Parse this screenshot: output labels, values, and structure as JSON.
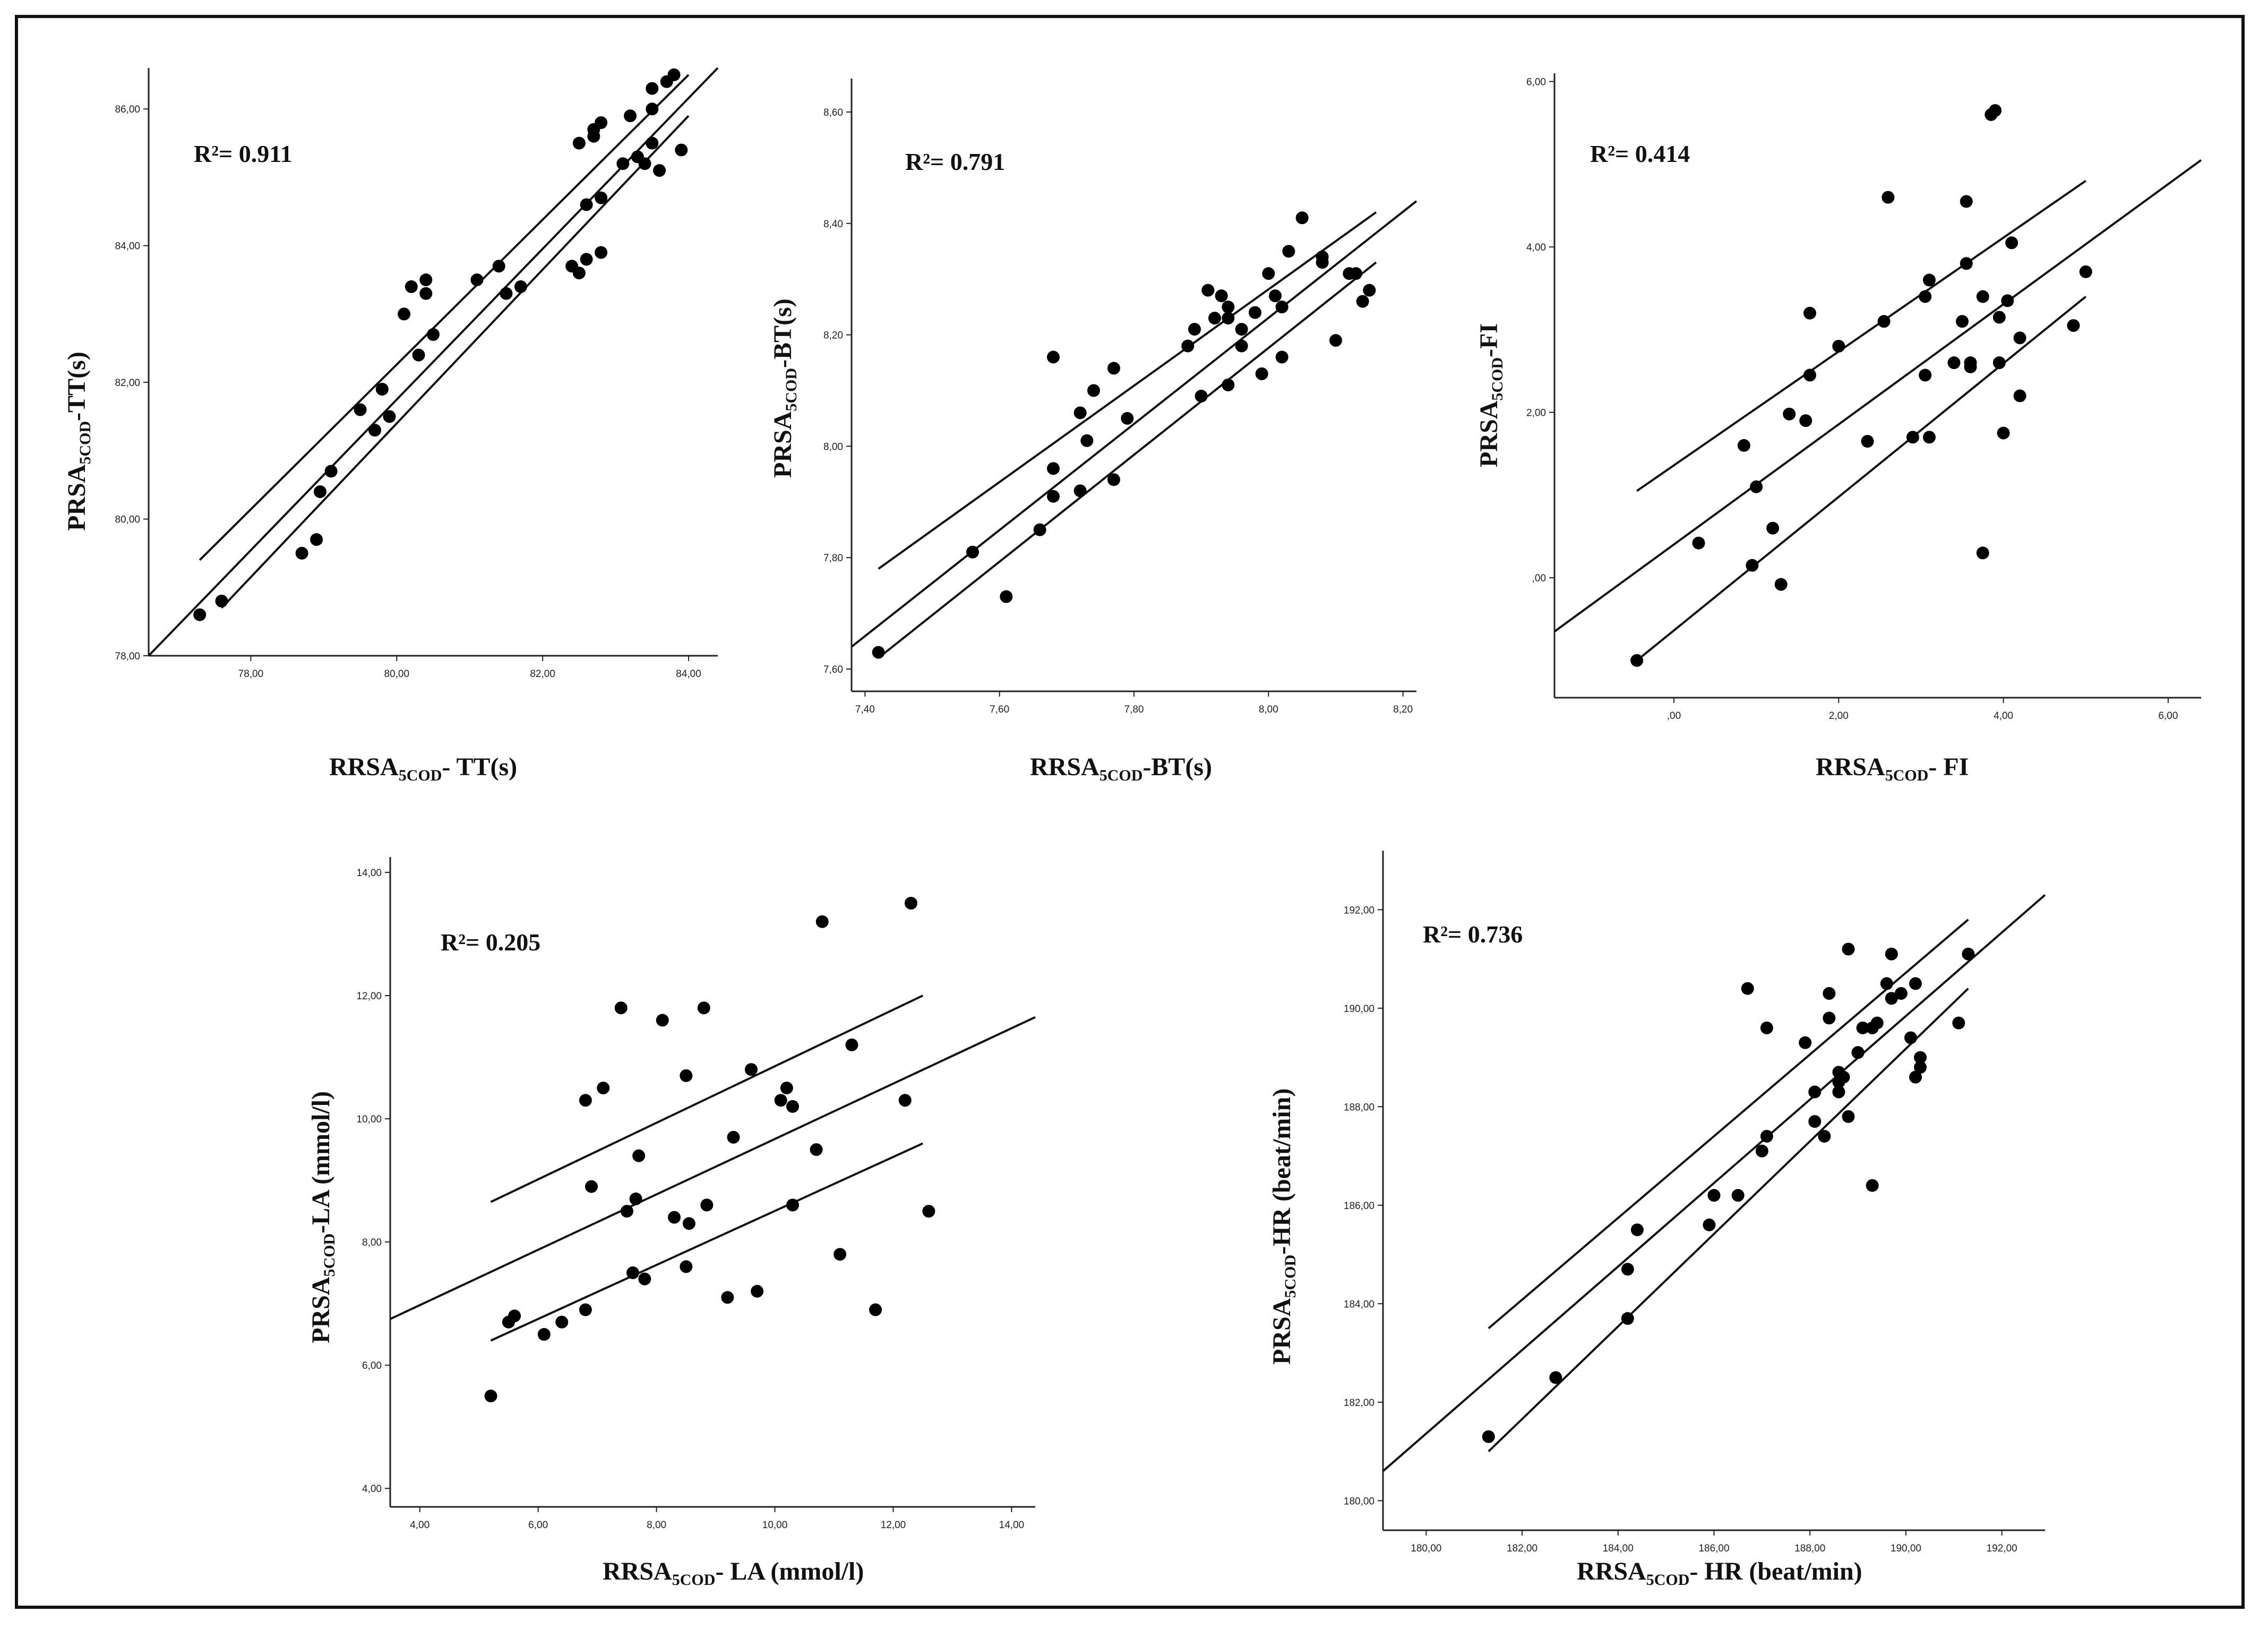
{
  "chart_data": [
    {
      "type": "scatter",
      "id": "tt",
      "r2": "R²= 0.911",
      "xlabel": {
        "main": "RRSA",
        "sub": "5COD",
        "tail": "- TT(s)"
      },
      "ylabel": {
        "main": "PRSA",
        "sub": "5COD",
        "tail": "-TT(s)"
      },
      "xlim": [
        76.6,
        84.4
      ],
      "ylim": [
        78.0,
        86.6
      ],
      "xticks": [
        78,
        80,
        82,
        84
      ],
      "xtick_labels": [
        "78,00",
        "80,00",
        "82,00",
        "84,00"
      ],
      "yticks": [
        78,
        80,
        82,
        84,
        86
      ],
      "ytick_labels": [
        "78,00",
        "80,00",
        "82,00",
        "84,00",
        "86,00"
      ],
      "points": [
        [
          77.3,
          78.6
        ],
        [
          77.6,
          78.8
        ],
        [
          78.7,
          79.5
        ],
        [
          78.9,
          79.7
        ],
        [
          78.95,
          80.4
        ],
        [
          79.1,
          80.7
        ],
        [
          79.5,
          81.6
        ],
        [
          79.7,
          81.3
        ],
        [
          79.8,
          81.9
        ],
        [
          79.9,
          81.5
        ],
        [
          80.1,
          83.0
        ],
        [
          80.2,
          83.4
        ],
        [
          80.3,
          82.4
        ],
        [
          80.4,
          83.3
        ],
        [
          80.4,
          83.5
        ],
        [
          80.5,
          82.7
        ],
        [
          81.1,
          83.5
        ],
        [
          81.4,
          83.7
        ],
        [
          81.5,
          83.3
        ],
        [
          81.7,
          83.4
        ],
        [
          82.4,
          83.7
        ],
        [
          82.5,
          83.6
        ],
        [
          82.5,
          85.5
        ],
        [
          82.6,
          84.6
        ],
        [
          82.6,
          83.8
        ],
        [
          82.7,
          85.6
        ],
        [
          82.7,
          85.7
        ],
        [
          82.8,
          85.8
        ],
        [
          82.8,
          84.7
        ],
        [
          82.8,
          83.9
        ],
        [
          83.1,
          85.2
        ],
        [
          83.2,
          85.9
        ],
        [
          83.3,
          85.3
        ],
        [
          83.4,
          85.2
        ],
        [
          83.5,
          86.3
        ],
        [
          83.5,
          85.5
        ],
        [
          83.5,
          86.0
        ],
        [
          83.6,
          85.1
        ],
        [
          83.7,
          86.4
        ],
        [
          83.8,
          86.5
        ],
        [
          83.9,
          85.4
        ]
      ],
      "fit": [
        [
          76.6,
          78.0
        ],
        [
          84.4,
          86.6
        ]
      ],
      "ci_upper": [
        [
          77.3,
          79.4
        ],
        [
          84.0,
          86.5
        ]
      ],
      "ci_lower": [
        [
          77.6,
          78.7
        ],
        [
          84.0,
          85.9
        ]
      ]
    },
    {
      "type": "scatter",
      "id": "bt",
      "r2": "R²= 0.791",
      "xlabel": {
        "main": "RRSA",
        "sub": "5COD",
        "tail": "-BT(s)"
      },
      "ylabel": {
        "main": "PRSA",
        "sub": "5COD",
        "tail": "-BT(s)"
      },
      "xlim": [
        7.38,
        8.22
      ],
      "ylim": [
        7.56,
        8.66
      ],
      "xticks": [
        7.4,
        7.6,
        7.8,
        8.0,
        8.2
      ],
      "xtick_labels": [
        "7,40",
        "7,60",
        "7,80",
        "8,00",
        "8,20"
      ],
      "yticks": [
        7.6,
        7.8,
        8.0,
        8.2,
        8.4,
        8.6
      ],
      "ytick_labels": [
        "7,60",
        "7,80",
        "8,00",
        "8,20",
        "8,40",
        "8,60"
      ],
      "points": [
        [
          7.42,
          7.63
        ],
        [
          7.56,
          7.81
        ],
        [
          7.61,
          7.73
        ],
        [
          7.66,
          7.85
        ],
        [
          7.68,
          7.96
        ],
        [
          7.68,
          7.91
        ],
        [
          7.68,
          8.16
        ],
        [
          7.72,
          7.92
        ],
        [
          7.72,
          8.06
        ],
        [
          7.73,
          8.01
        ],
        [
          7.74,
          8.1
        ],
        [
          7.77,
          8.14
        ],
        [
          7.77,
          7.94
        ],
        [
          7.79,
          8.05
        ],
        [
          7.88,
          8.18
        ],
        [
          7.89,
          8.21
        ],
        [
          7.9,
          8.09
        ],
        [
          7.91,
          8.28
        ],
        [
          7.92,
          8.23
        ],
        [
          7.93,
          8.27
        ],
        [
          7.94,
          8.25
        ],
        [
          7.94,
          8.23
        ],
        [
          7.94,
          8.11
        ],
        [
          7.96,
          8.18
        ],
        [
          7.96,
          8.21
        ],
        [
          7.98,
          8.24
        ],
        [
          7.99,
          8.13
        ],
        [
          8.0,
          8.31
        ],
        [
          8.01,
          8.27
        ],
        [
          8.02,
          8.25
        ],
        [
          8.02,
          8.16
        ],
        [
          8.03,
          8.35
        ],
        [
          8.05,
          8.41
        ],
        [
          8.08,
          8.34
        ],
        [
          8.08,
          8.33
        ],
        [
          8.1,
          8.19
        ],
        [
          8.12,
          8.31
        ],
        [
          8.13,
          8.31
        ],
        [
          8.14,
          8.26
        ],
        [
          8.15,
          8.28
        ]
      ],
      "fit": [
        [
          7.38,
          7.64
        ],
        [
          8.22,
          8.44
        ]
      ],
      "ci_upper": [
        [
          7.42,
          7.78
        ],
        [
          8.16,
          8.42
        ]
      ],
      "ci_lower": [
        [
          7.42,
          7.62
        ],
        [
          8.16,
          8.33
        ]
      ]
    },
    {
      "type": "scatter",
      "id": "fi",
      "r2": "R²= 0.414",
      "xlabel": {
        "main": "RRSA",
        "sub": "5COD",
        "tail": "- FI"
      },
      "ylabel": {
        "main": "PRSA",
        "sub": "5COD",
        "tail": "-FI"
      },
      "xlim": [
        -1.45,
        6.4
      ],
      "ylim": [
        -1.45,
        6.1
      ],
      "xticks": [
        0,
        2,
        4,
        6
      ],
      "xtick_labels": [
        ",00",
        "2,00",
        "4,00",
        "6,00"
      ],
      "yticks": [
        0,
        2,
        4,
        6
      ],
      "ytick_labels": [
        ",00",
        "2,00",
        "4,00",
        "6,00"
      ],
      "points": [
        [
          -0.45,
          -1.0
        ],
        [
          0.3,
          0.42
        ],
        [
          0.85,
          1.6
        ],
        [
          0.95,
          0.15
        ],
        [
          1.0,
          1.1
        ],
        [
          1.2,
          0.6
        ],
        [
          1.3,
          -0.08
        ],
        [
          1.4,
          1.98
        ],
        [
          1.6,
          1.9
        ],
        [
          1.65,
          2.45
        ],
        [
          1.65,
          3.2
        ],
        [
          2.0,
          2.8
        ],
        [
          2.35,
          1.65
        ],
        [
          2.55,
          3.1
        ],
        [
          2.6,
          4.6
        ],
        [
          2.9,
          1.7
        ],
        [
          3.05,
          3.4
        ],
        [
          3.05,
          2.45
        ],
        [
          3.1,
          3.6
        ],
        [
          3.1,
          1.7
        ],
        [
          3.4,
          2.6
        ],
        [
          3.5,
          3.1
        ],
        [
          3.55,
          3.8
        ],
        [
          3.55,
          4.55
        ],
        [
          3.6,
          2.6
        ],
        [
          3.6,
          2.55
        ],
        [
          3.75,
          3.4
        ],
        [
          3.75,
          0.3
        ],
        [
          3.85,
          5.6
        ],
        [
          3.9,
          5.65
        ],
        [
          3.95,
          2.6
        ],
        [
          3.95,
          3.15
        ],
        [
          4.0,
          1.75
        ],
        [
          4.05,
          3.35
        ],
        [
          4.1,
          4.05
        ],
        [
          4.2,
          2.2
        ],
        [
          4.2,
          2.9
        ],
        [
          4.85,
          3.05
        ],
        [
          5.0,
          3.7
        ]
      ],
      "fit": [
        [
          -1.45,
          -0.65
        ],
        [
          6.4,
          5.05
        ]
      ],
      "ci_upper": [
        [
          -0.45,
          1.05
        ],
        [
          5.0,
          4.8
        ]
      ],
      "ci_lower": [
        [
          -0.45,
          -1.0
        ],
        [
          5.0,
          3.4
        ]
      ]
    },
    {
      "type": "scatter",
      "id": "la",
      "r2": "R²= 0.205",
      "xlabel": {
        "main": "RRSA",
        "sub": "5COD",
        "tail": "- LA (mmol/l)"
      },
      "ylabel": {
        "main": "PRSA",
        "sub": "5COD",
        "tail": "-LA (mmol/l)"
      },
      "xlim": [
        3.5,
        14.4
      ],
      "ylim": [
        3.7,
        14.25
      ],
      "xticks": [
        4,
        6,
        8,
        10,
        12,
        14
      ],
      "xtick_labels": [
        "4,00",
        "6,00",
        "8,00",
        "10,00",
        "12,00",
        "14,00"
      ],
      "yticks": [
        4,
        6,
        8,
        10,
        12,
        14
      ],
      "ytick_labels": [
        "4,00",
        "6,00",
        "8,00",
        "10,00",
        "12,00",
        "14,00"
      ],
      "points": [
        [
          5.2,
          5.5
        ],
        [
          5.5,
          6.7
        ],
        [
          5.6,
          6.8
        ],
        [
          6.1,
          6.5
        ],
        [
          6.4,
          6.7
        ],
        [
          6.8,
          6.9
        ],
        [
          6.8,
          10.3
        ],
        [
          6.9,
          8.9
        ],
        [
          7.1,
          10.5
        ],
        [
          7.4,
          11.8
        ],
        [
          7.5,
          8.5
        ],
        [
          7.6,
          7.5
        ],
        [
          7.65,
          8.7
        ],
        [
          7.7,
          9.4
        ],
        [
          7.8,
          7.4
        ],
        [
          8.1,
          11.6
        ],
        [
          8.3,
          8.4
        ],
        [
          8.5,
          10.7
        ],
        [
          8.5,
          7.6
        ],
        [
          8.55,
          8.3
        ],
        [
          8.8,
          11.8
        ],
        [
          8.85,
          8.6
        ],
        [
          9.2,
          7.1
        ],
        [
          9.3,
          9.7
        ],
        [
          9.6,
          10.8
        ],
        [
          9.7,
          7.2
        ],
        [
          10.1,
          10.3
        ],
        [
          10.2,
          10.5
        ],
        [
          10.3,
          10.2
        ],
        [
          10.3,
          8.6
        ],
        [
          10.7,
          9.5
        ],
        [
          10.8,
          13.2
        ],
        [
          11.1,
          7.8
        ],
        [
          11.3,
          11.2
        ],
        [
          11.7,
          6.9
        ],
        [
          12.2,
          10.3
        ],
        [
          12.3,
          13.5
        ],
        [
          12.6,
          8.5
        ]
      ],
      "fit": [
        [
          3.5,
          6.75
        ],
        [
          14.4,
          11.65
        ]
      ],
      "ci_upper": [
        [
          5.2,
          8.65
        ],
        [
          12.5,
          12.0
        ]
      ],
      "ci_lower": [
        [
          5.2,
          6.4
        ],
        [
          12.5,
          9.6
        ]
      ]
    },
    {
      "type": "scatter",
      "id": "hr",
      "r2": "R²= 0.736",
      "xlabel": {
        "main": "RRSA",
        "sub": "5COD",
        "tail": "- HR (beat/min)"
      },
      "ylabel": {
        "main": "PRSA",
        "sub": "5COD",
        "tail": "-HR (beat/min)"
      },
      "xlim": [
        179.1,
        192.9
      ],
      "ylim": [
        179.4,
        193.2
      ],
      "xticks": [
        180,
        182,
        184,
        186,
        188,
        190,
        192
      ],
      "xtick_labels": [
        "180,00",
        "182,00",
        "184,00",
        "186,00",
        "188,00",
        "190,00",
        "192,00"
      ],
      "yticks": [
        180,
        182,
        184,
        186,
        188,
        190,
        192
      ],
      "ytick_labels": [
        "180,00",
        "182,00",
        "184,00",
        "186,00",
        "188,00",
        "190,00",
        "192,00"
      ],
      "points": [
        [
          181.3,
          181.3
        ],
        [
          182.7,
          182.5
        ],
        [
          184.2,
          183.7
        ],
        [
          184.2,
          184.7
        ],
        [
          184.4,
          185.5
        ],
        [
          185.9,
          185.6
        ],
        [
          186.0,
          186.2
        ],
        [
          186.5,
          186.2
        ],
        [
          186.7,
          190.4
        ],
        [
          187.0,
          187.1
        ],
        [
          187.1,
          189.6
        ],
        [
          187.1,
          187.4
        ],
        [
          187.9,
          189.3
        ],
        [
          188.1,
          188.3
        ],
        [
          188.1,
          187.7
        ],
        [
          188.3,
          187.4
        ],
        [
          188.4,
          189.8
        ],
        [
          188.4,
          190.3
        ],
        [
          188.6,
          188.3
        ],
        [
          188.6,
          188.5
        ],
        [
          188.6,
          188.7
        ],
        [
          188.7,
          188.6
        ],
        [
          188.8,
          191.2
        ],
        [
          188.8,
          187.8
        ],
        [
          189.0,
          189.1
        ],
        [
          189.0,
          189.1
        ],
        [
          189.1,
          189.6
        ],
        [
          189.3,
          186.4
        ],
        [
          189.3,
          189.6
        ],
        [
          189.4,
          189.7
        ],
        [
          189.6,
          190.5
        ],
        [
          189.7,
          190.2
        ],
        [
          189.7,
          191.1
        ],
        [
          189.9,
          190.3
        ],
        [
          190.1,
          189.4
        ],
        [
          190.2,
          188.6
        ],
        [
          190.2,
          190.5
        ],
        [
          190.3,
          188.8
        ],
        [
          190.3,
          189.0
        ],
        [
          191.1,
          189.7
        ],
        [
          191.3,
          191.1
        ]
      ],
      "fit": [
        [
          179.1,
          180.6
        ],
        [
          192.9,
          192.3
        ]
      ],
      "ci_upper": [
        [
          181.3,
          183.5
        ],
        [
          191.3,
          191.8
        ]
      ],
      "ci_lower": [
        [
          181.3,
          181.0
        ],
        [
          191.3,
          190.4
        ]
      ]
    }
  ]
}
